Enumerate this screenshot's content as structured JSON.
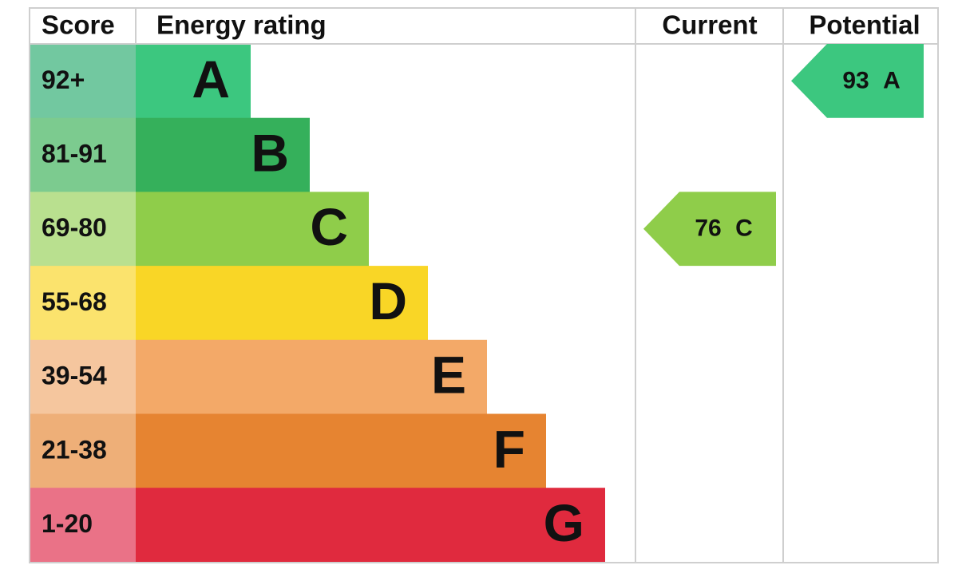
{
  "headers": {
    "score": "Score",
    "energy_rating": "Energy rating",
    "current": "Current",
    "potential": "Potential"
  },
  "bands": [
    {
      "score": "92+",
      "letter": "A",
      "color": "#3cc77f",
      "score_color": "#72c8a0"
    },
    {
      "score": "81-91",
      "letter": "B",
      "color": "#35b05b",
      "score_color": "#7ccb8f"
    },
    {
      "score": "69-80",
      "letter": "C",
      "color": "#8fcd4a",
      "score_color": "#b9e08f"
    },
    {
      "score": "55-68",
      "letter": "D",
      "color": "#f9d626",
      "score_color": "#fbe36d"
    },
    {
      "score": "39-54",
      "letter": "E",
      "color": "#f3a968",
      "score_color": "#f5c69e"
    },
    {
      "score": "21-38",
      "letter": "F",
      "color": "#e68431",
      "score_color": "#eeaf78"
    },
    {
      "score": "1-20",
      "letter": "G",
      "color": "#e02a3e",
      "score_color": "#ea7287"
    }
  ],
  "current": {
    "value": 76,
    "letter": "C"
  },
  "potential": {
    "value": 93,
    "letter": "A"
  }
}
